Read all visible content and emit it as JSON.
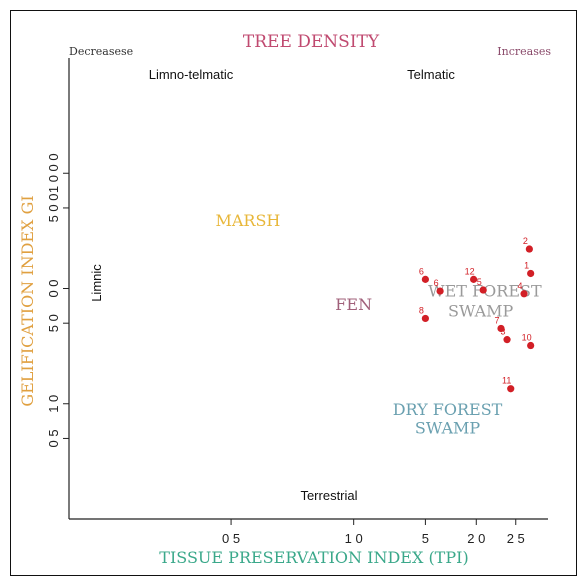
{
  "chart_data": {
    "type": "scatter",
    "title": "TREE DENSITY",
    "density_low": "Decreasese",
    "density_high": "Increases",
    "xlabel": "TISSUE PRESERVATION INDEX (TPI)",
    "ylabel": "GELIFICATION INDEX GI",
    "x_scale": "log",
    "y_scale": "log",
    "xlim": [
      0.2,
      3.0
    ],
    "ylim": [
      0.1,
      1000
    ],
    "x_ticks": [
      {
        "value": 0.5,
        "label": "0 5"
      },
      {
        "value": 1.0,
        "label": "1 0"
      },
      {
        "value": 1.5,
        "label": "5"
      },
      {
        "value": 2.0,
        "label": "2 0"
      },
      {
        "value": 2.5,
        "label": "2 5"
      }
    ],
    "y_ticks": [
      {
        "value": 0.5,
        "label": "0 5"
      },
      {
        "value": 1,
        "label": "1 0"
      },
      {
        "value": 5,
        "label": "5 0"
      },
      {
        "value": 10,
        "label": "0 0"
      },
      {
        "value": 50,
        "label": "5 0 0"
      },
      {
        "value": 100,
        "label": "1 0 0 0"
      }
    ],
    "regions": [
      {
        "name": "MARSH",
        "x": 0.55,
        "y": 35,
        "color": "#e8b73a"
      },
      {
        "name": "FEN",
        "x": 1.0,
        "y": 6.5,
        "color": "#a0607a"
      },
      {
        "name": "WET FOREST",
        "x": 2.1,
        "y": 8.5,
        "color": "#9a9a9a"
      },
      {
        "name": "SWAMP",
        "x": 2.05,
        "y": 5.7,
        "color": "#9a9a9a"
      },
      {
        "name": "DRY FOREST",
        "x": 1.7,
        "y": 0.8,
        "color": "#6aa0b0"
      },
      {
        "name": "SWAMP",
        "x": 1.7,
        "y": 0.55,
        "color": "#6aa0b0"
      }
    ],
    "environments": {
      "top_left": "Limno-telmatic",
      "top_right": "Telmatic",
      "left": "Limnic",
      "bottom": "Terrestrial"
    },
    "points": [
      {
        "label": "6",
        "x": 1.5,
        "y": 12.0
      },
      {
        "label": "8",
        "x": 1.5,
        "y": 5.5
      },
      {
        "label": "6",
        "x": 1.63,
        "y": 9.5
      },
      {
        "label": "12",
        "x": 1.97,
        "y": 12.0
      },
      {
        "label": "5",
        "x": 2.08,
        "y": 9.7
      },
      {
        "label": "7",
        "x": 2.3,
        "y": 4.5
      },
      {
        "label": "3",
        "x": 2.38,
        "y": 3.6
      },
      {
        "label": "11",
        "x": 2.43,
        "y": 1.35
      },
      {
        "label": "4",
        "x": 2.62,
        "y": 9.0
      },
      {
        "label": "1",
        "x": 2.72,
        "y": 13.5
      },
      {
        "label": "2",
        "x": 2.7,
        "y": 22.0
      },
      {
        "label": "10",
        "x": 2.72,
        "y": 3.2
      }
    ],
    "point_color": "#d21f26"
  }
}
